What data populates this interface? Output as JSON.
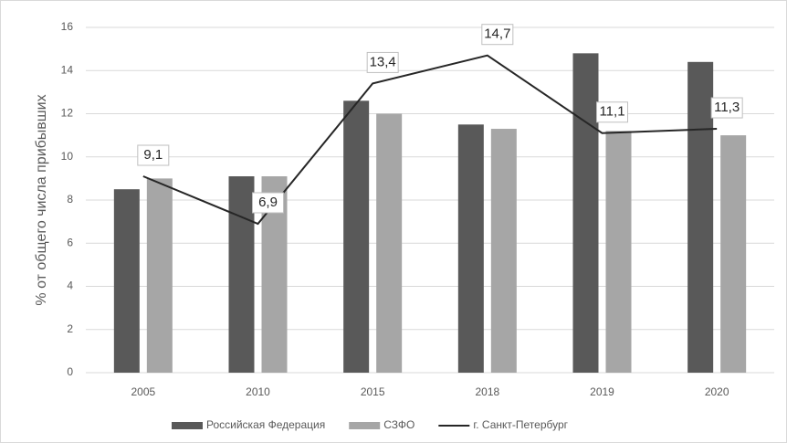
{
  "chart_data": {
    "type": "bar",
    "categories": [
      "2005",
      "2010",
      "2015",
      "2018",
      "2019",
      "2020"
    ],
    "series": [
      {
        "name": "Российская Федерация",
        "color": "#595959",
        "values": [
          8.5,
          9.1,
          12.6,
          11.5,
          14.8,
          14.4
        ]
      },
      {
        "name": "СЗФО",
        "color": "#a6a6a6",
        "values": [
          9.0,
          9.1,
          12.0,
          11.3,
          11.2,
          11.0
        ]
      },
      {
        "name": "г. Санкт-Петербург",
        "color": "#262626",
        "type": "line",
        "values": [
          9.1,
          6.9,
          13.4,
          14.7,
          11.1,
          11.3
        ],
        "value_labels": [
          "9,1",
          "6,9",
          "13,4",
          "14,7",
          "11,1",
          "11,3"
        ]
      }
    ],
    "ylabel": "% от общего числа прибывших",
    "ylim": [
      0,
      16
    ],
    "yticks": [
      0,
      2,
      4,
      6,
      8,
      10,
      12,
      14,
      16
    ],
    "grid": true,
    "legend": "bottom"
  }
}
